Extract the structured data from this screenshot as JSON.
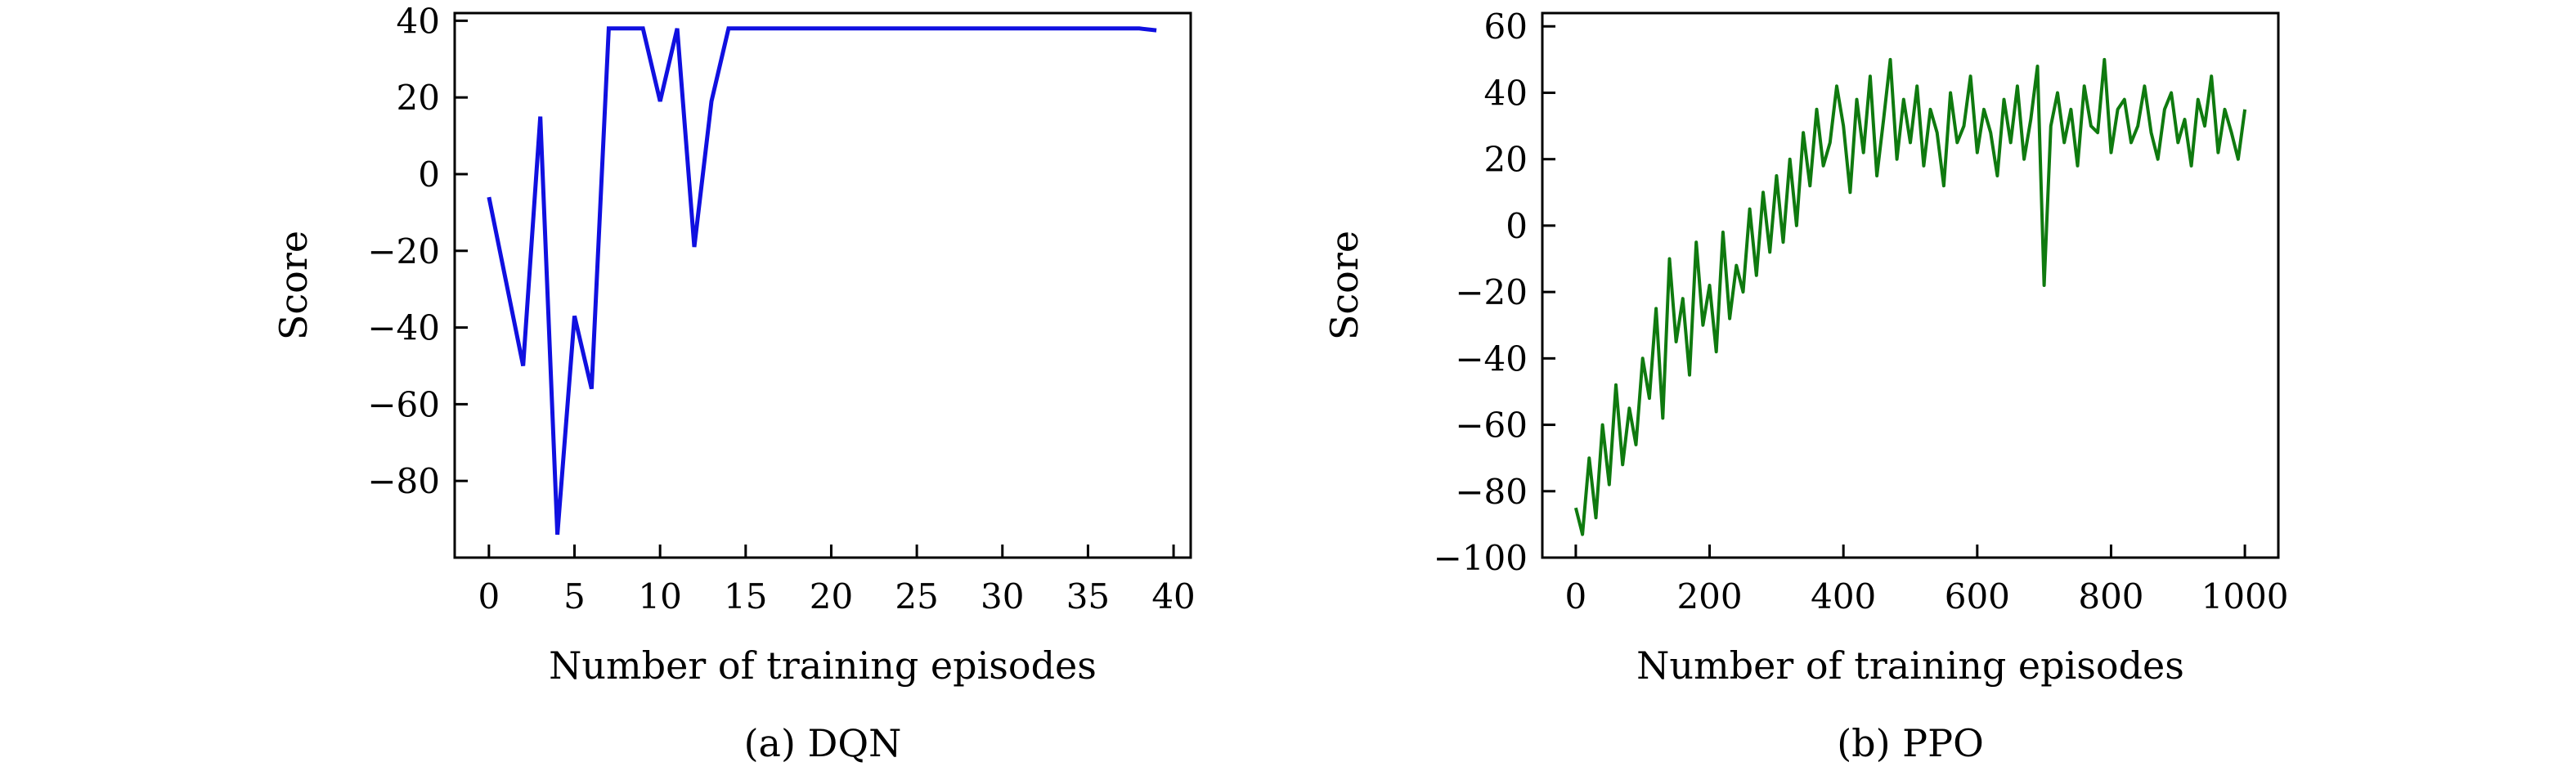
{
  "chart_data": [
    {
      "type": "line",
      "caption": "(a) DQN",
      "title": "",
      "xlabel": "Number of training episodes",
      "ylabel": "Score",
      "xlim": [
        -2,
        41
      ],
      "ylim": [
        -100,
        42
      ],
      "xticks": [
        0,
        5,
        10,
        15,
        20,
        25,
        30,
        35,
        40
      ],
      "yticks": [
        -80,
        -60,
        -40,
        -20,
        0,
        20,
        40
      ],
      "grid": false,
      "color": "#1010e0",
      "series": [
        {
          "x": [
            0,
            1,
            2,
            3,
            4,
            5,
            6,
            7,
            8,
            9,
            10,
            11,
            12,
            13,
            14,
            15,
            16,
            17,
            18,
            19,
            20,
            21,
            22,
            23,
            24,
            25,
            26,
            27,
            28,
            29,
            30,
            31,
            32,
            33,
            34,
            35,
            36,
            37,
            38,
            39
          ],
          "y": [
            -6,
            -28,
            -50,
            15,
            -94,
            -37,
            -56,
            38,
            38,
            38,
            19,
            38,
            -19,
            19,
            38,
            38,
            38,
            38,
            38,
            38,
            38,
            38,
            38,
            38,
            38,
            38,
            38,
            38,
            38,
            38,
            38,
            38,
            38,
            38,
            38,
            38,
            38,
            38,
            38,
            37.5
          ]
        }
      ]
    },
    {
      "type": "line",
      "caption": "(b) PPO",
      "title": "",
      "xlabel": "Number of training episodes",
      "ylabel": "Score",
      "xlim": [
        -50,
        1050
      ],
      "ylim": [
        -100,
        64
      ],
      "xticks": [
        0,
        200,
        400,
        600,
        800,
        1000
      ],
      "yticks": [
        -100,
        -80,
        -60,
        -40,
        -20,
        0,
        20,
        40,
        60
      ],
      "grid": false,
      "color": "#0f7a0f",
      "series": [
        {
          "x": [
            0,
            10,
            20,
            30,
            40,
            50,
            60,
            70,
            80,
            90,
            100,
            110,
            120,
            130,
            140,
            150,
            160,
            170,
            180,
            190,
            200,
            210,
            220,
            230,
            240,
            250,
            260,
            270,
            280,
            290,
            300,
            310,
            320,
            330,
            340,
            350,
            360,
            370,
            380,
            390,
            400,
            410,
            420,
            430,
            440,
            450,
            460,
            470,
            480,
            490,
            500,
            510,
            520,
            530,
            540,
            550,
            560,
            570,
            580,
            590,
            600,
            610,
            620,
            630,
            640,
            650,
            660,
            670,
            680,
            690,
            700,
            710,
            720,
            730,
            740,
            750,
            760,
            770,
            780,
            790,
            800,
            810,
            820,
            830,
            840,
            850,
            860,
            870,
            880,
            890,
            900,
            910,
            920,
            930,
            940,
            950,
            960,
            970,
            980,
            990,
            1000
          ],
          "y": [
            -85,
            -93,
            -70,
            -88,
            -60,
            -78,
            -48,
            -72,
            -55,
            -66,
            -40,
            -52,
            -25,
            -58,
            -10,
            -35,
            -22,
            -45,
            -5,
            -30,
            -18,
            -38,
            -2,
            -28,
            -12,
            -20,
            5,
            -15,
            10,
            -8,
            15,
            -5,
            20,
            0,
            28,
            12,
            35,
            18,
            25,
            42,
            30,
            10,
            38,
            22,
            45,
            15,
            32,
            50,
            20,
            38,
            25,
            42,
            18,
            35,
            28,
            12,
            40,
            25,
            30,
            45,
            22,
            35,
            28,
            15,
            38,
            25,
            42,
            20,
            32,
            48,
            -18,
            30,
            40,
            25,
            35,
            18,
            42,
            30,
            28,
            50,
            22,
            35,
            38,
            25,
            30,
            42,
            28,
            20,
            35,
            40,
            25,
            32,
            18,
            38,
            30,
            45,
            22,
            35,
            28,
            20,
            35
          ]
        }
      ]
    }
  ]
}
